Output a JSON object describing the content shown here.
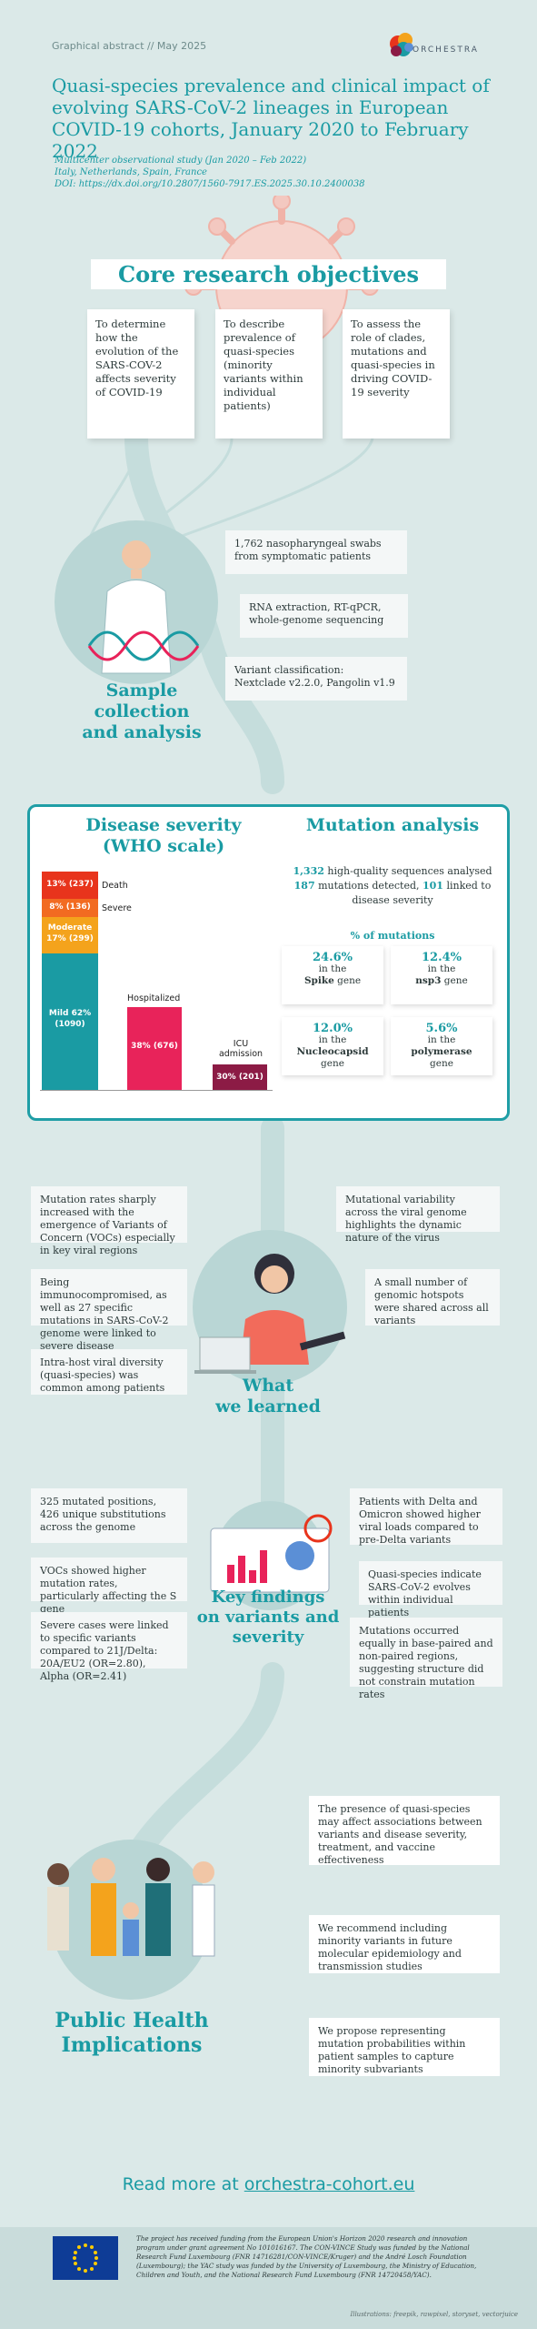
{
  "header": {
    "label": "Graphical abstract // May 2025",
    "logo_text": "ORCHESTRA",
    "title": "Quasi-species prevalence and clinical impact of evolving SARS-CoV-2 lineages in European COVID-19 cohorts, January 2020 to February 2022",
    "meta_line1": "Multicenter observational study (Jan 2020 – Feb 2022)",
    "meta_line2": "Italy, Netherlands, Spain, France",
    "meta_line3": "DOI: https://dx.doi.org/10.2807/1560-7917.ES.2025.30.10.2400038"
  },
  "objectives": {
    "title": "Core research objectives",
    "items": [
      "To determine how the evolution of the SARS-COV-2 affects severity of COVID-19",
      "To describe prevalence of quasi-species (minority variants within individual patients)",
      "To assess the role of clades, mutations and quasi-species in driving COVID-19 severity"
    ]
  },
  "sample": {
    "title_line1": "Sample",
    "title_line2": "collection",
    "title_line3": "and analysis",
    "items": [
      "1,762 nasopharyngeal swabs from symptomatic patients",
      "RNA extraction, RT-qPCR, whole-genome sequencing",
      "Variant classification: Nextclade v2.2.0, Pangolin v1.9"
    ]
  },
  "severity": {
    "title_line1": "Disease severity",
    "title_line2": "(WHO scale)",
    "stack": [
      {
        "label": "13% (237)",
        "side": "Death",
        "color": "#e8341c"
      },
      {
        "label": "8% (136)",
        "side": "Severe",
        "color": "#f26b21"
      },
      {
        "label": "Moderate 17% (299)",
        "side": "",
        "color": "#f4a31c"
      },
      {
        "label": "Mild 62% (1090)",
        "side": "",
        "color": "#1a9ba3"
      }
    ],
    "hospitalized": {
      "label": "38% (676)",
      "side": "Hospitalized",
      "color": "#e8235a"
    },
    "icu": {
      "label": "30% (201)",
      "side": "ICU admission",
      "color": "#8c1b45"
    }
  },
  "mutation": {
    "title": "Mutation analysis",
    "line1_num": "1,332",
    "line1_text": " high-quality sequences analysed",
    "line2_num1": "187",
    "line2_text1": " mutations detected, ",
    "line2_num2": "101",
    "line2_text2": " linked to",
    "line3": "disease severity",
    "pct_header": "% of mutations",
    "boxes": [
      {
        "pct": "24.6%",
        "in": "in the",
        "gene": "Spike",
        "suffix": " gene"
      },
      {
        "pct": "12.4%",
        "in": "in the",
        "gene": "nsp3",
        "suffix": " gene"
      },
      {
        "pct": "12.0%",
        "in": "in the",
        "gene": "Nucleocapsid",
        "suffix": "gene"
      },
      {
        "pct": "5.6%",
        "in": "in the",
        "gene": "polymerase",
        "suffix": "gene"
      }
    ]
  },
  "learned": {
    "title_line1": "What",
    "title_line2": "we learned",
    "left": [
      "Mutation rates sharply increased with the emergence of Variants of Concern (VOCs) especially in key viral regions",
      "Being immunocompromised, as well as 27 specific mutations in SARS-CoV-2 genome were linked to severe disease",
      "Intra-host viral diversity (quasi-species) was common among patients"
    ],
    "right": [
      "Mutational variability across the viral genome highlights the dynamic nature of the virus",
      "A small number of genomic hotspots were shared across all variants"
    ]
  },
  "findings": {
    "title_line1": "Key findings",
    "title_line2": "on variants and",
    "title_line3": "severity",
    "left": [
      "325 mutated positions, 426 unique substitutions across the genome",
      "VOCs showed higher mutation rates, particularly affecting the S gene",
      "Severe cases were linked to specific variants compared to 21J/Delta: 20A/EU2 (OR=2.80), Alpha (OR=2.41)"
    ],
    "right": [
      "Patients with Delta and Omicron showed higher viral loads compared to pre-Delta variants",
      "Quasi-species indicate SARS-CoV-2 evolves within individual patients",
      "Mutations occurred equally in base-paired and non-paired regions, suggesting structure did not constrain mutation rates"
    ]
  },
  "public": {
    "title_line1": "Public Health",
    "title_line2": "Implications",
    "items": [
      "The presence of quasi-species may affect associations between variants and disease severity, treatment, and vaccine effectiveness",
      "We recommend including minority variants in future molecular epidemiology and transmission studies",
      "We propose representing mutation probabilities within patient samples to capture minority subvariants"
    ]
  },
  "readmore": {
    "prefix": "Read more at ",
    "link": "orchestra-cohort.eu"
  },
  "funding": "The project has received funding from the European Union's Horizon 2020 research and innovation program under grant agreement No 101016167. The CON-VINCE Study was funded by the National Research Fund Luxembourg (FNR 14716281/CON-VINCE/Kruger) and the André Losch Foundation (Luxembourg); the YAC study was funded by the University of Luxembourg, the Ministry of Education, Children and Youth, and the National Research Fund Luxembourg (FNR 14720458/YAC).",
  "credit": "Illustrations: freepik, rawpixel, storyset, vectorjuice",
  "colors": {
    "accent": "#1a9ba3",
    "background": "#dbe9e8"
  }
}
